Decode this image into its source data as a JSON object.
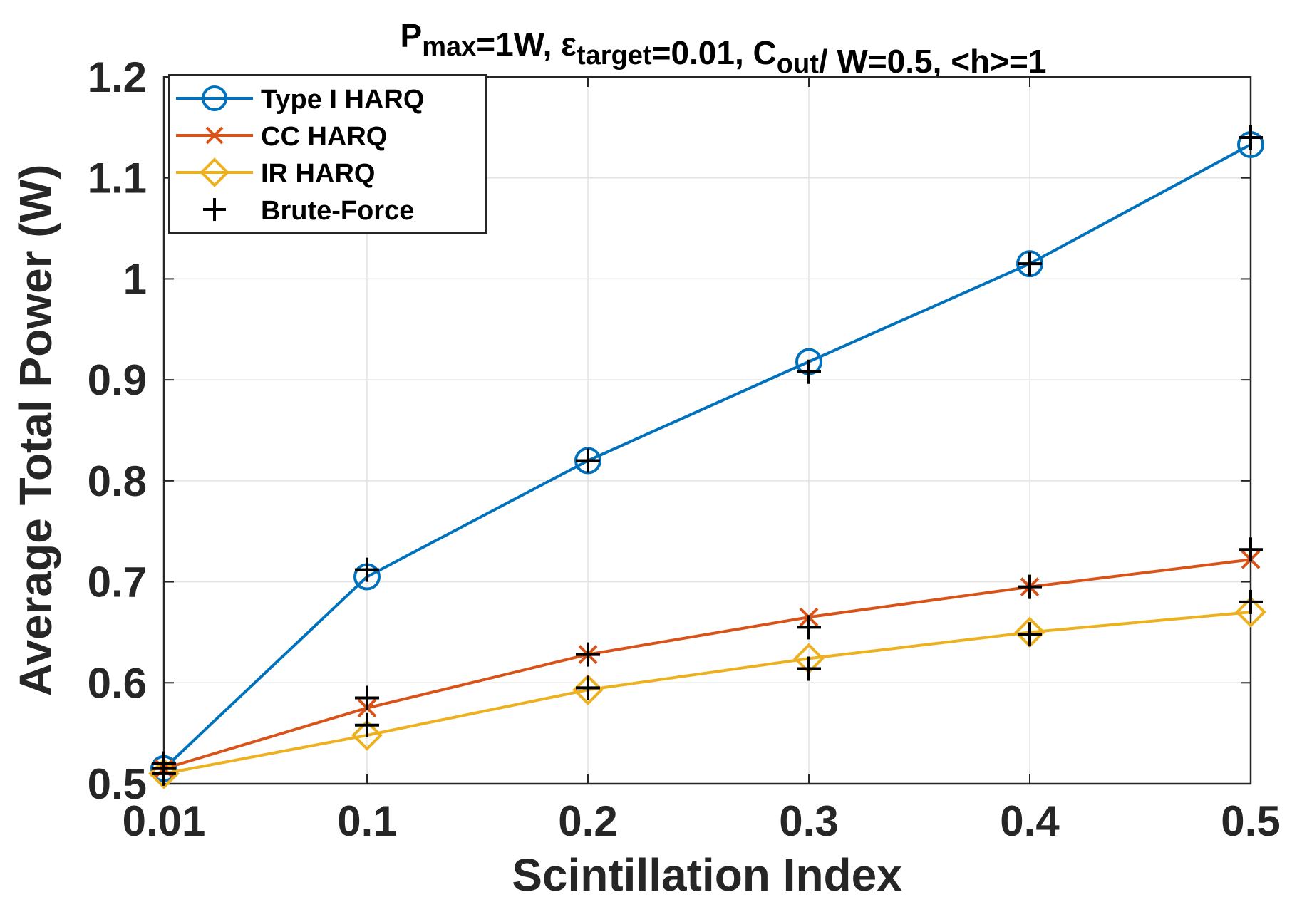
{
  "chart_data": {
    "type": "line",
    "title": {
      "parts": [
        {
          "text": "P",
          "sub": "max"
        },
        {
          "text": "=1W, ε",
          "sub": "target"
        },
        {
          "text": "=0.01, C",
          "sub": "out"
        },
        {
          "text": "/ W=0.5, <h>=1",
          "sub": ""
        }
      ]
    },
    "xlabel": "Scintillation Index",
    "ylabel": "Average Total Power (W)",
    "x_ticks": [
      0.01,
      0.1,
      0.2,
      0.3,
      0.4,
      0.5
    ],
    "x_tick_labels": [
      "0.01",
      "0.1",
      "0.2",
      "0.3",
      "0.4",
      "0.5"
    ],
    "y_ticks": [
      0.5,
      0.6,
      0.7,
      0.8,
      0.9,
      1.0,
      1.1,
      1.2
    ],
    "y_tick_labels": [
      "0.5",
      "0.6",
      "0.7",
      "0.8",
      "0.9",
      "1",
      "1.1",
      "1.2"
    ],
    "xlim": [
      0.01,
      0.5
    ],
    "ylim": [
      0.5,
      1.2
    ],
    "grid": true,
    "legend_position": "top-left",
    "series": [
      {
        "name": "Type I HARQ",
        "marker": "circle",
        "color": "#0072BD",
        "x": [
          0.01,
          0.1,
          0.2,
          0.3,
          0.4,
          0.5
        ],
        "values": [
          0.515,
          0.705,
          0.82,
          0.918,
          1.015,
          1.133
        ]
      },
      {
        "name": "CC HARQ",
        "marker": "x",
        "color": "#D95319",
        "x": [
          0.01,
          0.1,
          0.2,
          0.3,
          0.4,
          0.5
        ],
        "values": [
          0.515,
          0.575,
          0.628,
          0.665,
          0.695,
          0.722
        ]
      },
      {
        "name": "IR HARQ",
        "marker": "diamond",
        "color": "#EDB120",
        "x": [
          0.01,
          0.1,
          0.2,
          0.3,
          0.4,
          0.5
        ],
        "values": [
          0.51,
          0.548,
          0.593,
          0.624,
          0.65,
          0.67
        ]
      },
      {
        "name": "Brute-Force",
        "marker": "plus",
        "color": "#000000",
        "line": false,
        "x": [
          0.01,
          0.1,
          0.2,
          0.3,
          0.4,
          0.5,
          0.1,
          0.2,
          0.3,
          0.4,
          0.5,
          0.01,
          0.1,
          0.2,
          0.3,
          0.4,
          0.5,
          0.01
        ],
        "values": [
          0.515,
          0.712,
          0.82,
          0.908,
          1.015,
          1.14,
          0.585,
          0.628,
          0.655,
          0.695,
          0.732,
          0.51,
          0.558,
          0.595,
          0.614,
          0.648,
          0.68,
          0.52
        ]
      }
    ]
  }
}
